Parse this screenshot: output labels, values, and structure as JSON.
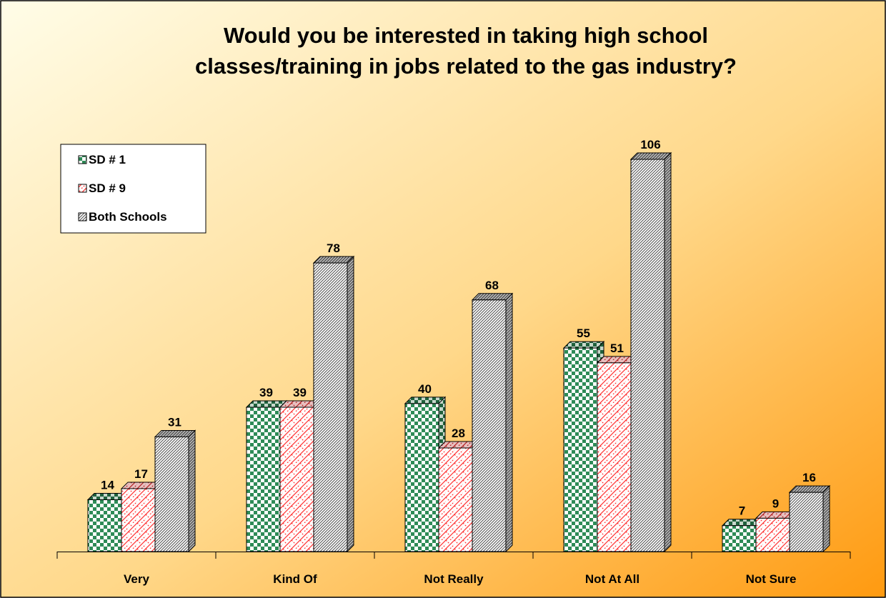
{
  "chart_data": {
    "type": "bar",
    "title_lines": [
      "Would you be interested in taking high school",
      "classes/training in jobs related to the gas industry?"
    ],
    "xlabel": "",
    "ylabel": "",
    "ylim": [
      0,
      120
    ],
    "grid": false,
    "legend_position": "top-left",
    "three_d": true,
    "categories": [
      "Very",
      "Kind Of",
      "Not Really",
      "Not At All",
      "Not Sure"
    ],
    "series": [
      {
        "name": "SD # 1",
        "values": [
          14,
          39,
          40,
          55,
          7
        ],
        "color": "#2e8b57",
        "pattern": "checker"
      },
      {
        "name": "SD # 9",
        "values": [
          17,
          39,
          28,
          51,
          9
        ],
        "color": "#ff3030",
        "pattern": "weave"
      },
      {
        "name": "Both Schools",
        "values": [
          31,
          78,
          68,
          106,
          16
        ],
        "color": "#555555",
        "pattern": "diagonal"
      }
    ],
    "background_colors": [
      "#fffde8",
      "#ff9a10"
    ]
  }
}
